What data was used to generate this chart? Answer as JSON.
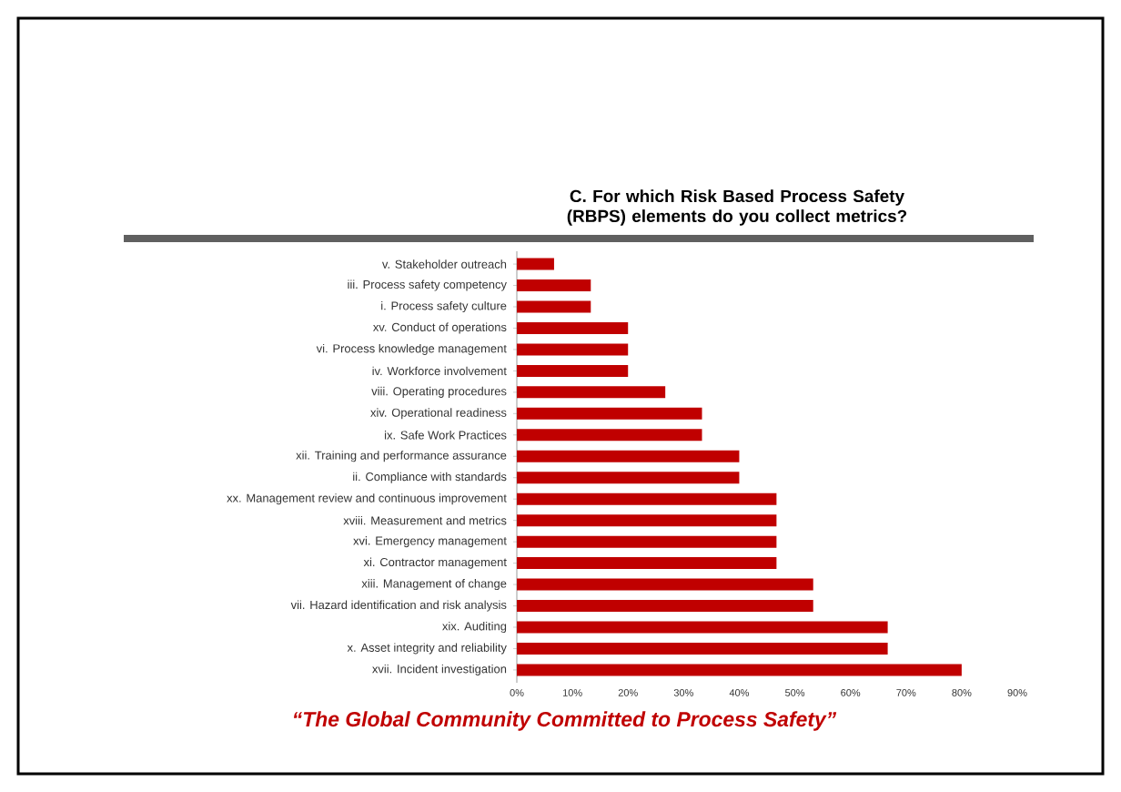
{
  "chart_data": {
    "type": "bar",
    "orientation": "horizontal",
    "title": "C. For which Risk Based Process Safety (RBPS) elements do you collect metrics?",
    "categories": [
      "v. Stakeholder outreach",
      "iii. Process safety competency",
      "i. Process safety culture",
      "xv. Conduct of operations",
      "vi. Process knowledge management",
      "iv. Workforce involvement",
      "viii. Operating procedures",
      "xiv. Operational readiness",
      "ix. Safe Work Practices",
      "xii. Training and performance assurance",
      "ii. Compliance with standards",
      "xx. Management review and continuous improvement",
      "xviii. Measurement and metrics",
      "xvi. Emergency management",
      "xi. Contractor management",
      "xiii. Management of change",
      "vii. Hazard identification and risk analysis",
      "xix. Auditing",
      "x. Asset integrity and reliability",
      "xvii. Incident investigation"
    ],
    "values": [
      6.7,
      13.3,
      13.3,
      20,
      20,
      20,
      26.7,
      33.3,
      33.3,
      40,
      40,
      46.7,
      46.7,
      46.7,
      46.7,
      53.3,
      53.3,
      66.7,
      66.7,
      80
    ],
    "color": "#c00000",
    "xlim": [
      0,
      90
    ],
    "xticks": [
      {
        "value": 0,
        "label": "0%"
      },
      {
        "value": 10,
        "label": "10%"
      },
      {
        "value": 20,
        "label": "20%"
      },
      {
        "value": 30,
        "label": "30%"
      },
      {
        "value": 40,
        "label": "40%"
      },
      {
        "value": 50,
        "label": "50%"
      },
      {
        "value": 60,
        "label": "60%"
      },
      {
        "value": 70,
        "label": "70%"
      },
      {
        "value": 80,
        "label": "80%"
      },
      {
        "value": 90,
        "label": "90%"
      }
    ],
    "grid": false,
    "annotations": [
      "“The Global Community Committed to Process Safety”"
    ]
  }
}
